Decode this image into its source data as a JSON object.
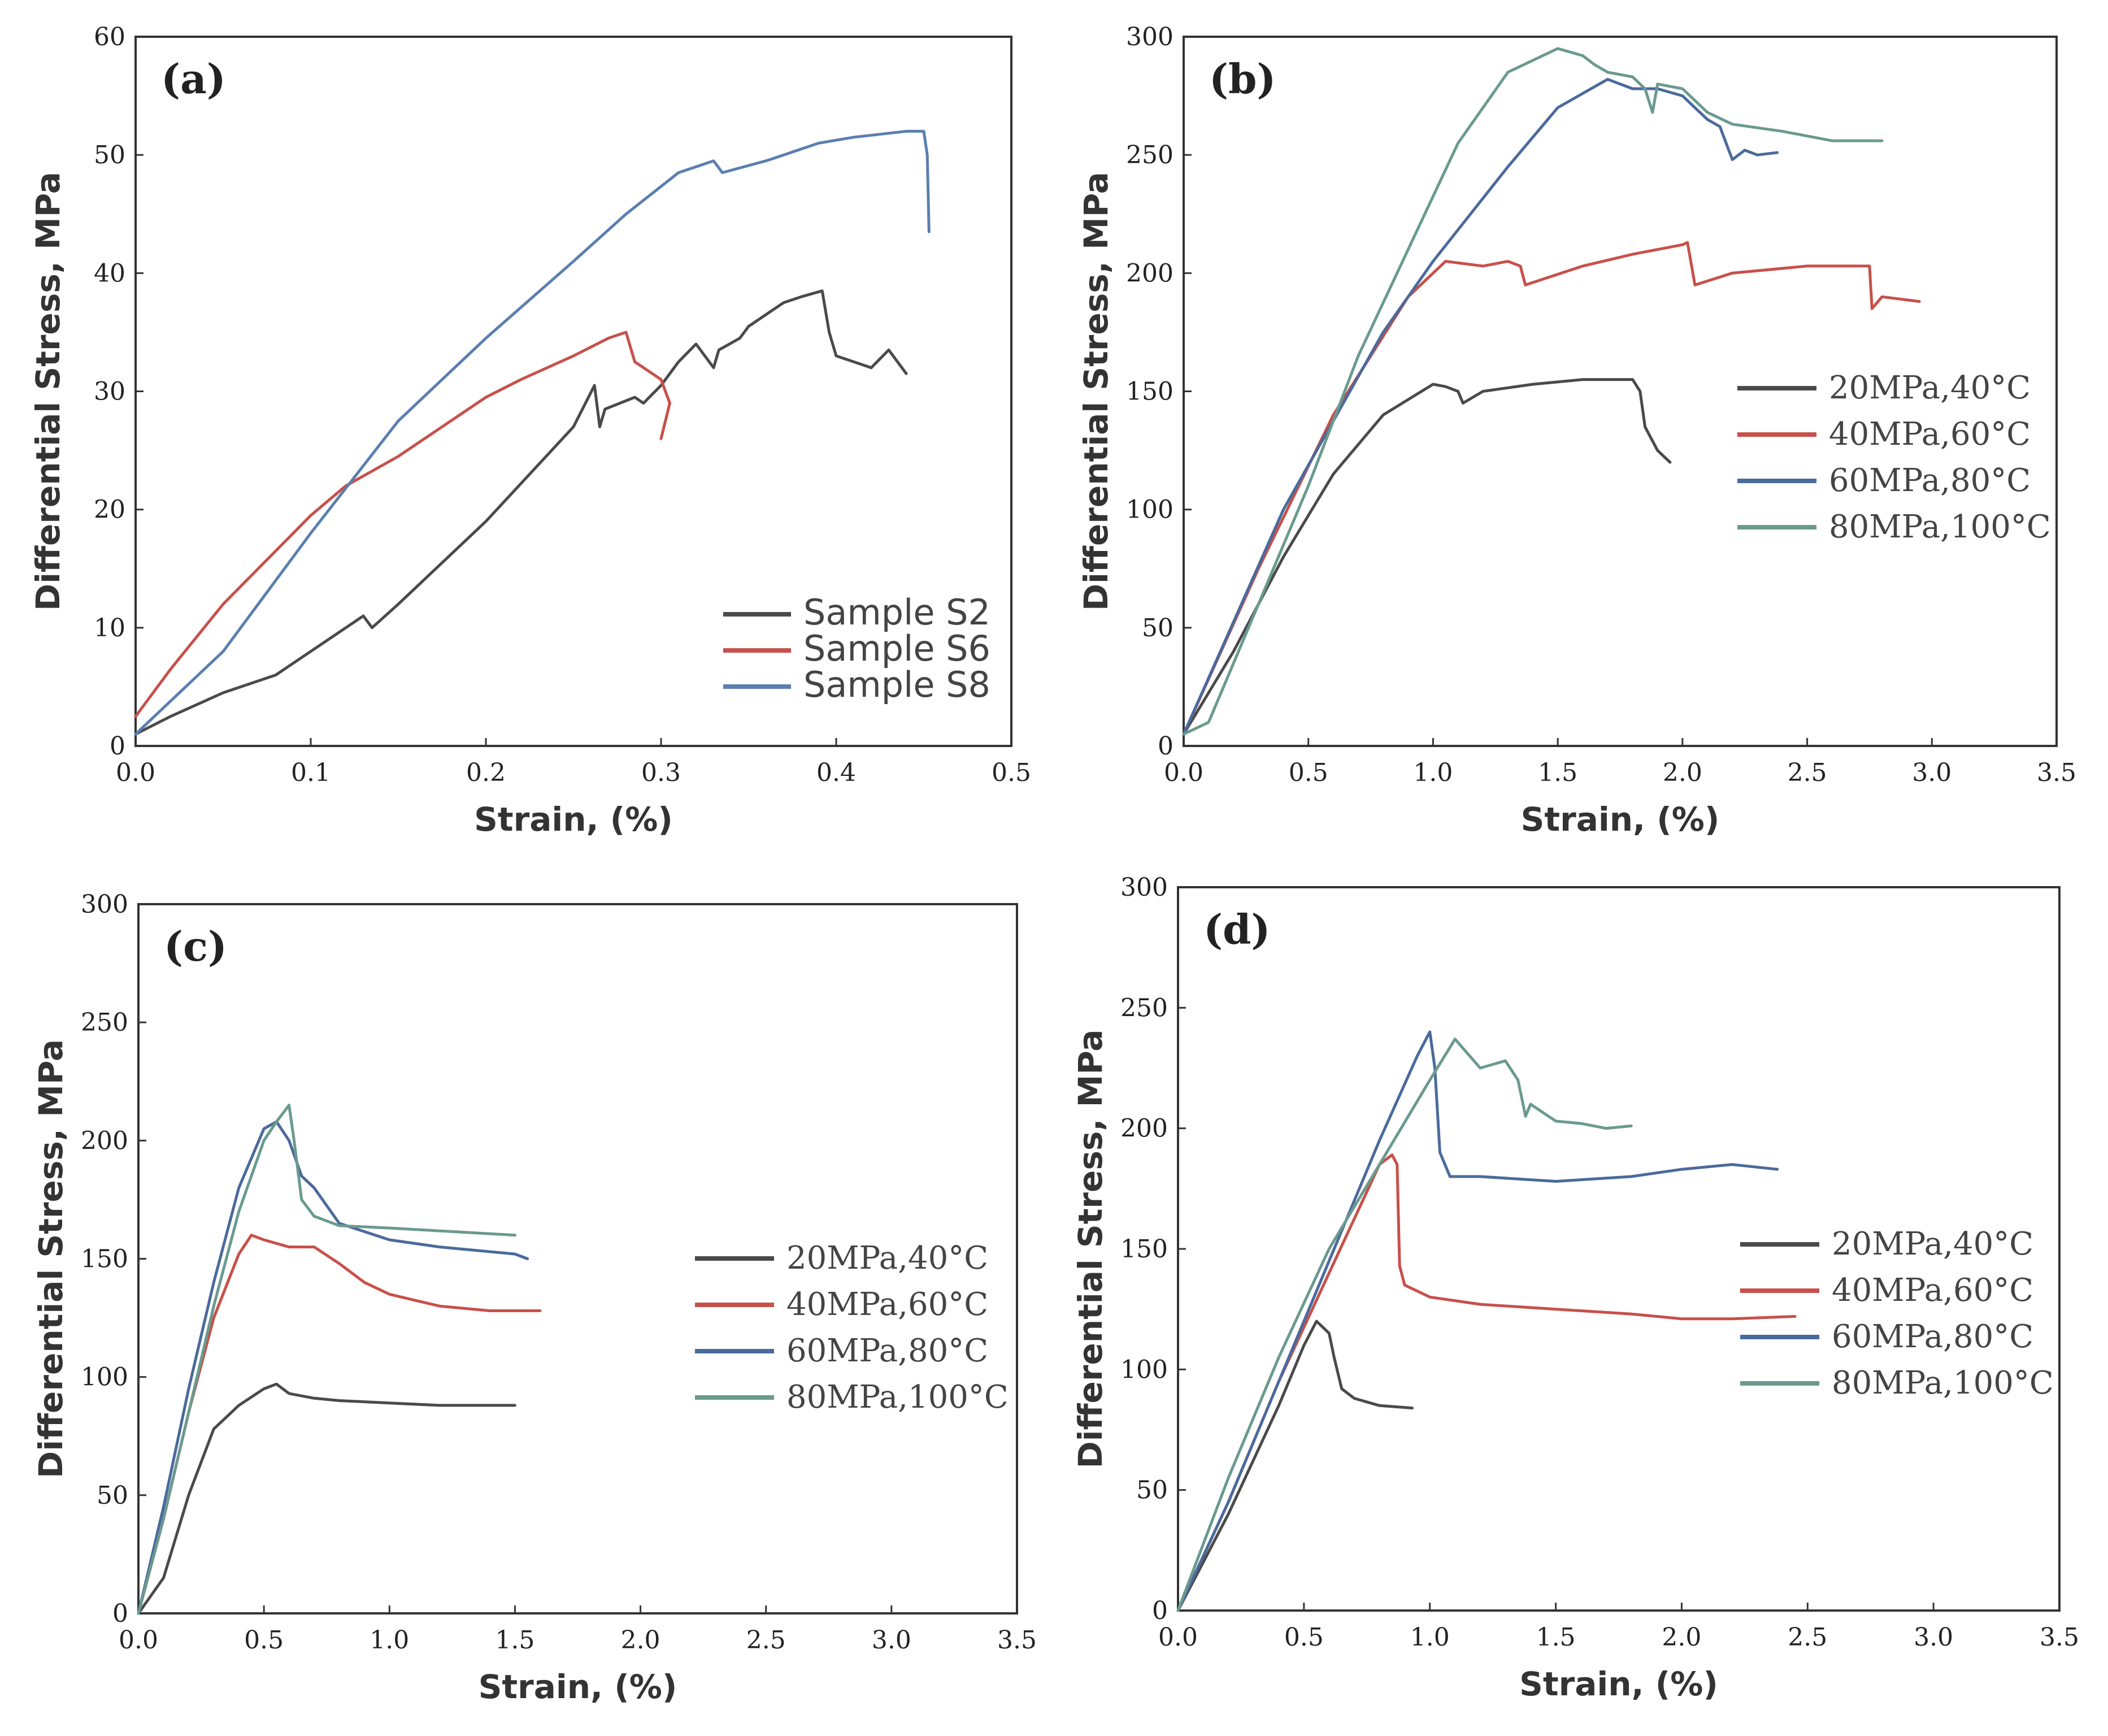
{
  "chart_data": [
    {
      "type": "line",
      "panel": "(a)",
      "xlabel": "Strain, (%)",
      "ylabel": "Differential Stress, MPa",
      "xlim": [
        0.0,
        0.5
      ],
      "ylim": [
        0,
        60
      ],
      "xticks": [
        "0.0",
        "0.1",
        "0.2",
        "0.3",
        "0.4",
        "0.5"
      ],
      "yticks": [
        "0",
        "10",
        "20",
        "30",
        "40",
        "50",
        "60"
      ],
      "legend_position": "bottom-right",
      "legend_style": "sans",
      "series": [
        {
          "name": "Sample S2",
          "color": "#4a4a4a",
          "x": [
            0.0,
            0.02,
            0.05,
            0.08,
            0.1,
            0.125,
            0.13,
            0.135,
            0.15,
            0.2,
            0.25,
            0.262,
            0.265,
            0.268,
            0.285,
            0.29,
            0.3,
            0.31,
            0.32,
            0.33,
            0.333,
            0.345,
            0.35,
            0.36,
            0.37,
            0.38,
            0.392,
            0.396,
            0.4,
            0.41,
            0.42,
            0.43,
            0.44
          ],
          "y": [
            1.0,
            2.5,
            4.5,
            6.0,
            8.0,
            10.5,
            11.0,
            10.0,
            12.0,
            19.0,
            27.0,
            30.5,
            27.0,
            28.5,
            29.5,
            29.0,
            30.5,
            32.5,
            34.0,
            32.0,
            33.5,
            34.5,
            35.5,
            36.5,
            37.5,
            38.0,
            38.5,
            35.0,
            33.0,
            32.5,
            32.0,
            33.5,
            31.5
          ]
        },
        {
          "name": "Sample S6",
          "color": "#c8504a",
          "x": [
            0.0,
            0.02,
            0.05,
            0.08,
            0.1,
            0.12,
            0.15,
            0.18,
            0.2,
            0.22,
            0.25,
            0.27,
            0.28,
            0.285,
            0.29,
            0.3,
            0.305,
            0.3
          ],
          "y": [
            2.5,
            6.5,
            12.0,
            16.5,
            19.5,
            22.0,
            24.5,
            27.5,
            29.5,
            31.0,
            33.0,
            34.5,
            35.0,
            32.5,
            32.0,
            31.0,
            29.0,
            26.0
          ]
        },
        {
          "name": "Sample S8",
          "color": "#5a7fb0",
          "x": [
            0.0,
            0.05,
            0.1,
            0.15,
            0.2,
            0.25,
            0.28,
            0.31,
            0.32,
            0.33,
            0.335,
            0.36,
            0.37,
            0.38,
            0.39,
            0.41,
            0.44,
            0.45,
            0.452,
            0.453
          ],
          "y": [
            1.0,
            8.0,
            18.0,
            27.5,
            34.5,
            41.0,
            45.0,
            48.5,
            49.0,
            49.5,
            48.5,
            49.5,
            50.0,
            50.5,
            51.0,
            51.5,
            52.0,
            52.0,
            50.0,
            43.5
          ]
        }
      ]
    },
    {
      "type": "line",
      "panel": "(b)",
      "xlabel": "Strain, (%)",
      "ylabel": "Differential Stress, MPa",
      "xlim": [
        0.0,
        3.5
      ],
      "ylim": [
        0,
        300
      ],
      "xticks": [
        "0.0",
        "0.5",
        "1.0",
        "1.5",
        "2.0",
        "2.5",
        "3.0",
        "3.5"
      ],
      "yticks": [
        "0",
        "50",
        "100",
        "150",
        "200",
        "250",
        "300"
      ],
      "legend_position": "center-right",
      "legend_style": "serif",
      "series": [
        {
          "name": "20MPa,40°C",
          "color": "#4a4a4a",
          "x": [
            0.0,
            0.2,
            0.4,
            0.6,
            0.8,
            1.0,
            1.05,
            1.1,
            1.12,
            1.2,
            1.4,
            1.6,
            1.8,
            1.83,
            1.85,
            1.9,
            1.95
          ],
          "y": [
            5,
            40,
            80,
            115,
            140,
            153,
            152,
            150,
            145,
            150,
            153,
            155,
            155,
            150,
            135,
            125,
            120
          ]
        },
        {
          "name": "40MPa,60°C",
          "color": "#c8504a",
          "x": [
            0.0,
            0.3,
            0.6,
            0.9,
            1.05,
            1.2,
            1.3,
            1.35,
            1.37,
            1.6,
            1.8,
            2.0,
            2.02,
            2.05,
            2.2,
            2.5,
            2.75,
            2.76,
            2.8,
            2.95
          ],
          "y": [
            5,
            75,
            140,
            190,
            205,
            203,
            205,
            203,
            195,
            203,
            208,
            212,
            213,
            195,
            200,
            203,
            203,
            185,
            190,
            188
          ]
        },
        {
          "name": "60MPa,80°C",
          "color": "#4a6a9c",
          "x": [
            0.0,
            0.4,
            0.8,
            1.0,
            1.3,
            1.5,
            1.7,
            1.75,
            1.8,
            1.9,
            2.0,
            2.05,
            2.1,
            2.15,
            2.2,
            2.25,
            2.3,
            2.38
          ],
          "y": [
            5,
            100,
            175,
            205,
            245,
            270,
            282,
            280,
            278,
            278,
            275,
            270,
            265,
            262,
            248,
            252,
            250,
            251
          ]
        },
        {
          "name": "80MPa,100°C",
          "color": "#6a9a8e",
          "x": [
            0.0,
            0.1,
            0.3,
            0.5,
            0.7,
            0.9,
            1.1,
            1.3,
            1.5,
            1.6,
            1.65,
            1.7,
            1.8,
            1.85,
            1.88,
            1.9,
            2.0,
            2.1,
            2.2,
            2.4,
            2.6,
            2.8
          ],
          "y": [
            5,
            10,
            60,
            110,
            165,
            210,
            255,
            285,
            295,
            292,
            288,
            285,
            283,
            278,
            268,
            280,
            278,
            268,
            263,
            260,
            256,
            256
          ]
        }
      ]
    },
    {
      "type": "line",
      "panel": "(c)",
      "xlabel": "Strain, (%)",
      "ylabel": "Differential Stress, MPa",
      "xlim": [
        0.0,
        3.5
      ],
      "ylim": [
        0,
        300
      ],
      "xticks": [
        "0.0",
        "0.5",
        "1.0",
        "1.5",
        "2.0",
        "2.5",
        "3.0",
        "3.5"
      ],
      "yticks": [
        "0",
        "50",
        "100",
        "150",
        "200",
        "250",
        "300"
      ],
      "legend_position": "center-right",
      "legend_style": "serif",
      "series": [
        {
          "name": "20MPa,40°C",
          "color": "#4a4a4a",
          "x": [
            0.0,
            0.1,
            0.2,
            0.3,
            0.4,
            0.5,
            0.55,
            0.6,
            0.7,
            0.8,
            1.0,
            1.2,
            1.5
          ],
          "y": [
            0,
            15,
            50,
            78,
            88,
            95,
            97,
            93,
            91,
            90,
            89,
            88,
            88
          ]
        },
        {
          "name": "40MPa,60°C",
          "color": "#c8504a",
          "x": [
            0.0,
            0.1,
            0.2,
            0.3,
            0.4,
            0.45,
            0.5,
            0.6,
            0.7,
            0.8,
            0.9,
            1.0,
            1.2,
            1.4,
            1.6
          ],
          "y": [
            0,
            40,
            85,
            125,
            152,
            160,
            158,
            155,
            155,
            148,
            140,
            135,
            130,
            128,
            128
          ]
        },
        {
          "name": "60MPa,80°C",
          "color": "#4a6a9c",
          "x": [
            0.0,
            0.1,
            0.2,
            0.3,
            0.4,
            0.5,
            0.55,
            0.6,
            0.65,
            0.7,
            0.8,
            1.0,
            1.2,
            1.5,
            1.55
          ],
          "y": [
            0,
            45,
            95,
            140,
            180,
            205,
            208,
            200,
            185,
            180,
            165,
            158,
            155,
            152,
            150
          ]
        },
        {
          "name": "80MPa,100°C",
          "color": "#6a9a8e",
          "x": [
            0.0,
            0.1,
            0.2,
            0.3,
            0.4,
            0.5,
            0.55,
            0.6,
            0.62,
            0.65,
            0.7,
            0.8,
            1.0,
            1.5
          ],
          "y": [
            0,
            40,
            85,
            130,
            170,
            200,
            208,
            215,
            200,
            175,
            168,
            164,
            163,
            160
          ]
        }
      ]
    },
    {
      "type": "line",
      "panel": "(d)",
      "xlabel": "Strain, (%)",
      "ylabel": "Differential Stress, MPa",
      "xlim": [
        0.0,
        3.5
      ],
      "ylim": [
        0,
        300
      ],
      "xticks": [
        "0.0",
        "0.5",
        "1.0",
        "1.5",
        "2.0",
        "2.5",
        "3.0",
        "3.5"
      ],
      "yticks": [
        "0",
        "50",
        "100",
        "150",
        "200",
        "250",
        "300"
      ],
      "legend_position": "center-right",
      "legend_style": "serif",
      "series": [
        {
          "name": "20MPa,40°C",
          "color": "#4a4a4a",
          "x": [
            0.0,
            0.2,
            0.4,
            0.5,
            0.55,
            0.6,
            0.62,
            0.65,
            0.7,
            0.8,
            0.93
          ],
          "y": [
            0,
            40,
            85,
            110,
            120,
            115,
            105,
            92,
            88,
            85,
            84
          ]
        },
        {
          "name": "40MPa,60°C",
          "color": "#c8504a",
          "x": [
            0.0,
            0.2,
            0.4,
            0.6,
            0.8,
            0.85,
            0.87,
            0.88,
            0.9,
            1.0,
            1.2,
            1.5,
            1.8,
            2.0,
            2.2,
            2.45
          ],
          "y": [
            0,
            45,
            95,
            140,
            185,
            189,
            185,
            143,
            135,
            130,
            127,
            125,
            123,
            121,
            121,
            122
          ]
        },
        {
          "name": "60MPa,80°C",
          "color": "#4a6a9c",
          "x": [
            0.0,
            0.2,
            0.4,
            0.6,
            0.8,
            0.95,
            1.0,
            1.02,
            1.04,
            1.08,
            1.2,
            1.5,
            1.8,
            2.0,
            2.2,
            2.38
          ],
          "y": [
            0,
            45,
            95,
            145,
            195,
            230,
            240,
            225,
            190,
            180,
            180,
            178,
            180,
            183,
            185,
            183
          ]
        },
        {
          "name": "80MPa,100°C",
          "color": "#6a9a8e",
          "x": [
            0.0,
            0.2,
            0.4,
            0.6,
            0.8,
            1.0,
            1.1,
            1.2,
            1.3,
            1.35,
            1.38,
            1.4,
            1.5,
            1.6,
            1.7,
            1.8
          ],
          "y": [
            0,
            55,
            105,
            150,
            185,
            220,
            237,
            225,
            228,
            220,
            205,
            210,
            203,
            202,
            200,
            201
          ]
        }
      ]
    }
  ]
}
